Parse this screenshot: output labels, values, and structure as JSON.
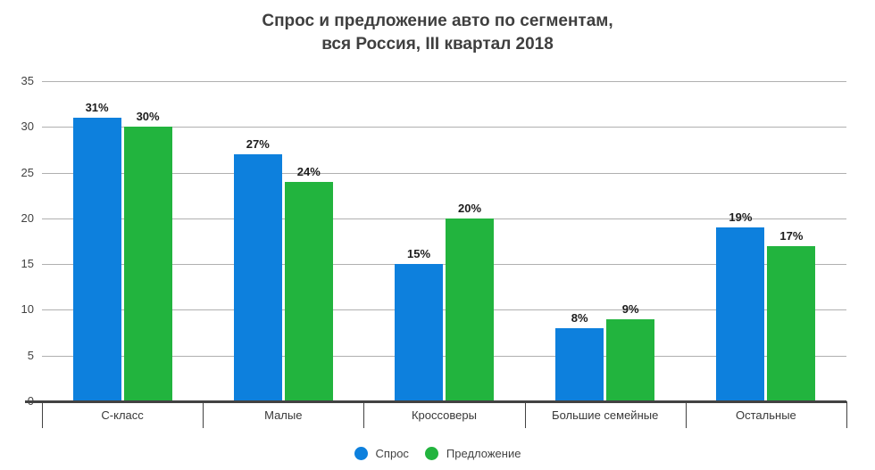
{
  "title": {
    "line1": "Спрос и предложение авто по сегментам,",
    "line2": "вся Россия, III квартал 2018"
  },
  "chart_data": {
    "type": "bar",
    "categories": [
      "С-класс",
      "Малые",
      "Кроссоверы",
      "Большие семейные",
      "Остальные"
    ],
    "series": [
      {
        "name": "Спрос",
        "color": "#0d80dd",
        "values": [
          31,
          27,
          15,
          8,
          19
        ]
      },
      {
        "name": "Предложение",
        "color": "#22b43e",
        "values": [
          30,
          24,
          20,
          9,
          17
        ]
      }
    ],
    "value_suffix": "%",
    "yticks": [
      0,
      5,
      10,
      15,
      20,
      25,
      30,
      35
    ],
    "ylim": [
      0,
      35
    ],
    "grid": true,
    "legend_position": "bottom",
    "gridline_color": "#b0b0b0",
    "axis_color": "#424242"
  }
}
